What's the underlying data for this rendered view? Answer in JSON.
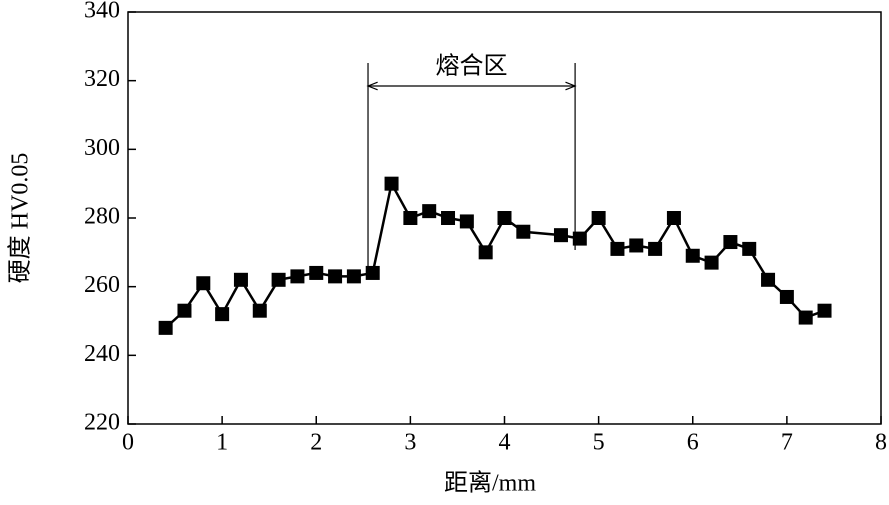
{
  "chart_data": {
    "type": "line",
    "x_label": "距离/mm",
    "y_label": "硬度  HV0.05",
    "x": [
      0.4,
      0.6,
      0.8,
      1.0,
      1.2,
      1.4,
      1.6,
      1.8,
      2.0,
      2.2,
      2.4,
      2.6,
      2.8,
      3.0,
      3.2,
      3.4,
      3.6,
      3.8,
      4.0,
      4.2,
      4.6,
      4.8,
      5.0,
      5.2,
      5.4,
      5.6,
      5.8,
      6.0,
      6.2,
      6.4,
      6.6,
      6.8,
      7.0,
      7.2,
      7.4
    ],
    "series": [
      {
        "color": "#000000",
        "values": [
          248,
          253,
          261,
          252,
          262,
          253,
          262,
          263,
          264,
          263,
          263,
          264,
          290,
          280,
          282,
          280,
          279,
          270,
          280,
          276,
          275,
          274,
          280,
          271,
          272,
          271,
          280,
          269,
          267,
          273,
          271,
          262,
          257,
          251,
          253
        ]
      }
    ],
    "xlim": [
      0,
      8
    ],
    "xticks": [
      0,
      1,
      2,
      3,
      4,
      5,
      6,
      7,
      8
    ],
    "ylim": [
      220,
      340
    ],
    "yticks": [
      220,
      240,
      260,
      280,
      300,
      320,
      340
    ],
    "annotation": {
      "text": "熔合区",
      "span": [
        2.55,
        4.75
      ]
    }
  }
}
